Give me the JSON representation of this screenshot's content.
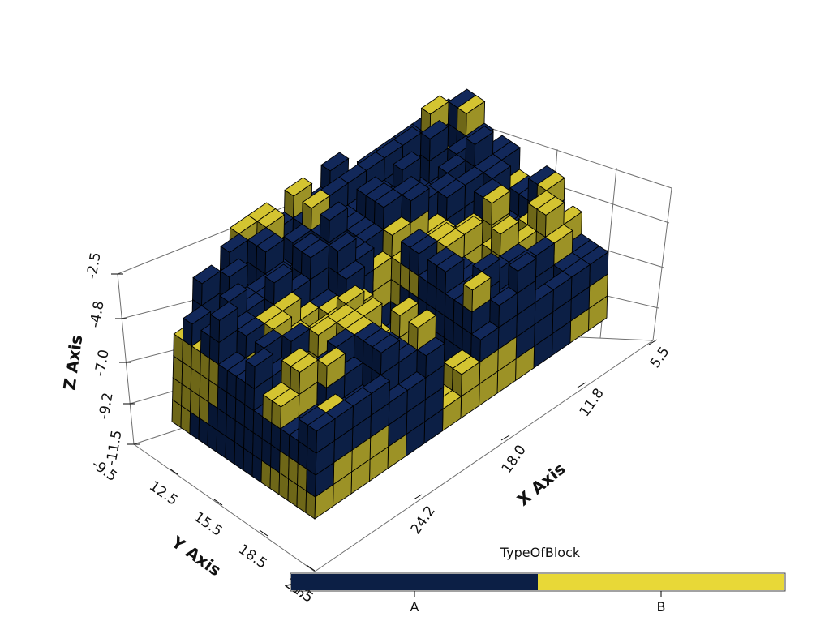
{
  "colorbar": {
    "title": "TypeOfBlock",
    "categories": [
      "A",
      "B"
    ],
    "colors": {
      "A": "#0c1f45",
      "B": "#e8d837"
    }
  },
  "axes": {
    "x": {
      "label": "X Axis",
      "ticks": [
        "5.5",
        "11.8",
        "18.0",
        "24.2",
        "30."
      ]
    },
    "y": {
      "label": "Y Axis",
      "ticks": [
        "-9.5",
        "12.5",
        "15.5",
        "18.5",
        "21.5"
      ]
    },
    "z": {
      "label": "Z Axis",
      "ticks": [
        "-11.5",
        "-9.2",
        "-7.0",
        "-4.8",
        "-2.5"
      ]
    }
  },
  "render": {
    "block_colors": {
      "A_face": "#0c1f45",
      "A_side": "#071634",
      "B_face": "#9c9226",
      "B_side": "#6e6718",
      "edge": "#000000"
    },
    "background": "#ffffff",
    "box_line": "#555555"
  }
}
